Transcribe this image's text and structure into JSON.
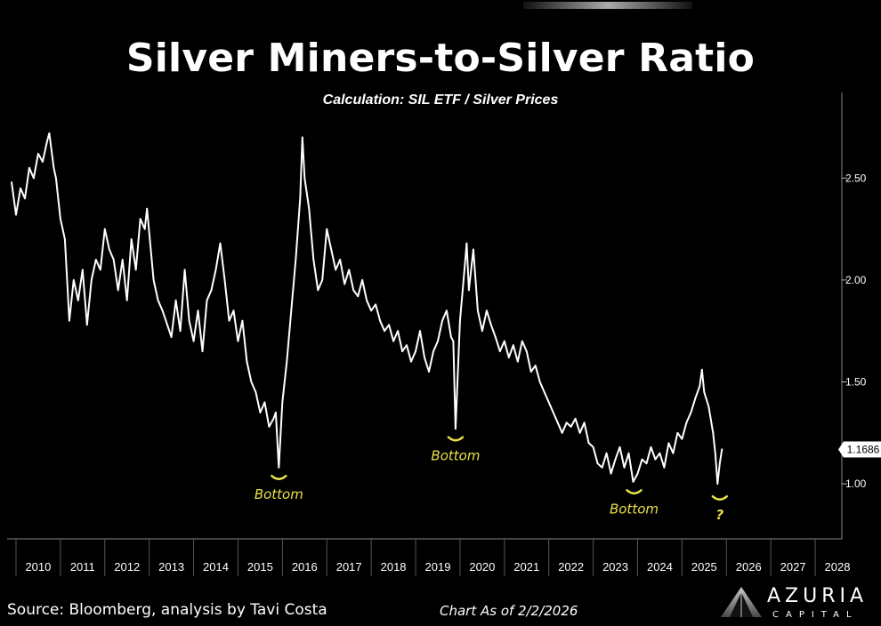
{
  "header": {
    "title": "Silver Miners-to-Silver Ratio",
    "subtitle": "Calculation: SIL ETF / Silver Prices"
  },
  "footer": {
    "source": "Source: Bloomberg, analysis by Tavi Costa",
    "as_of": "Chart As of 2/2/2026"
  },
  "logo": {
    "name": "AZURIA",
    "sub": "CAPITAL"
  },
  "colors": {
    "background": "#000000",
    "line": "#ffffff",
    "annotation": "#e8e04a"
  },
  "chart_data": {
    "type": "line",
    "title": "Silver Miners-to-Silver Ratio",
    "subtitle": "Calculation: SIL ETF / Silver Prices",
    "xlabel": "",
    "ylabel": "",
    "xlim": [
      2009.8,
      2028.6
    ],
    "ylim": [
      0.73,
      2.92
    ],
    "x_ticks": [
      "2010",
      "2011",
      "2012",
      "2013",
      "2014",
      "2015",
      "2016",
      "2017",
      "2018",
      "2019",
      "2020",
      "2021",
      "2022",
      "2023",
      "2024",
      "2025",
      "2026",
      "2027",
      "2028"
    ],
    "y_ticks": [
      "1.00",
      "1.50",
      "2.00",
      "2.50"
    ],
    "last_value": "1.1686",
    "grid": false,
    "series": [
      {
        "points": [
          [
            2009.9,
            2.48
          ],
          [
            2010.0,
            2.32
          ],
          [
            2010.1,
            2.45
          ],
          [
            2010.2,
            2.4
          ],
          [
            2010.3,
            2.55
          ],
          [
            2010.4,
            2.5
          ],
          [
            2010.5,
            2.62
          ],
          [
            2010.6,
            2.58
          ],
          [
            2010.7,
            2.68
          ],
          [
            2010.75,
            2.72
          ],
          [
            2010.85,
            2.55
          ],
          [
            2010.9,
            2.5
          ],
          [
            2011.0,
            2.3
          ],
          [
            2011.1,
            2.2
          ],
          [
            2011.2,
            1.8
          ],
          [
            2011.3,
            2.0
          ],
          [
            2011.4,
            1.9
          ],
          [
            2011.5,
            2.05
          ],
          [
            2011.6,
            1.78
          ],
          [
            2011.7,
            2.0
          ],
          [
            2011.8,
            2.1
          ],
          [
            2011.9,
            2.05
          ],
          [
            2012.0,
            2.25
          ],
          [
            2012.1,
            2.15
          ],
          [
            2012.2,
            2.1
          ],
          [
            2012.3,
            1.95
          ],
          [
            2012.4,
            2.1
          ],
          [
            2012.5,
            1.9
          ],
          [
            2012.6,
            2.2
          ],
          [
            2012.7,
            2.05
          ],
          [
            2012.8,
            2.3
          ],
          [
            2012.9,
            2.25
          ],
          [
            2012.95,
            2.35
          ],
          [
            2013.1,
            2.0
          ],
          [
            2013.2,
            1.9
          ],
          [
            2013.3,
            1.85
          ],
          [
            2013.5,
            1.72
          ],
          [
            2013.6,
            1.9
          ],
          [
            2013.7,
            1.75
          ],
          [
            2013.8,
            2.05
          ],
          [
            2013.9,
            1.8
          ],
          [
            2014.0,
            1.7
          ],
          [
            2014.1,
            1.85
          ],
          [
            2014.2,
            1.65
          ],
          [
            2014.3,
            1.9
          ],
          [
            2014.4,
            1.95
          ],
          [
            2014.5,
            2.05
          ],
          [
            2014.6,
            2.18
          ],
          [
            2014.7,
            2.0
          ],
          [
            2014.8,
            1.8
          ],
          [
            2014.9,
            1.85
          ],
          [
            2015.0,
            1.7
          ],
          [
            2015.1,
            1.8
          ],
          [
            2015.2,
            1.6
          ],
          [
            2015.3,
            1.5
          ],
          [
            2015.4,
            1.45
          ],
          [
            2015.5,
            1.35
          ],
          [
            2015.6,
            1.4
          ],
          [
            2015.7,
            1.28
          ],
          [
            2015.8,
            1.32
          ],
          [
            2015.85,
            1.35
          ],
          [
            2015.92,
            1.08
          ],
          [
            2016.0,
            1.4
          ],
          [
            2016.1,
            1.6
          ],
          [
            2016.2,
            1.85
          ],
          [
            2016.3,
            2.1
          ],
          [
            2016.4,
            2.4
          ],
          [
            2016.45,
            2.7
          ],
          [
            2016.5,
            2.5
          ],
          [
            2016.6,
            2.35
          ],
          [
            2016.7,
            2.1
          ],
          [
            2016.8,
            1.95
          ],
          [
            2016.9,
            2.0
          ],
          [
            2017.0,
            2.25
          ],
          [
            2017.1,
            2.15
          ],
          [
            2017.2,
            2.05
          ],
          [
            2017.3,
            2.1
          ],
          [
            2017.4,
            1.98
          ],
          [
            2017.5,
            2.05
          ],
          [
            2017.6,
            1.95
          ],
          [
            2017.7,
            1.92
          ],
          [
            2017.8,
            2.0
          ],
          [
            2017.9,
            1.9
          ],
          [
            2018.0,
            1.85
          ],
          [
            2018.1,
            1.88
          ],
          [
            2018.2,
            1.8
          ],
          [
            2018.3,
            1.75
          ],
          [
            2018.4,
            1.78
          ],
          [
            2018.5,
            1.7
          ],
          [
            2018.6,
            1.75
          ],
          [
            2018.7,
            1.65
          ],
          [
            2018.8,
            1.68
          ],
          [
            2018.9,
            1.6
          ],
          [
            2019.0,
            1.65
          ],
          [
            2019.1,
            1.75
          ],
          [
            2019.2,
            1.62
          ],
          [
            2019.3,
            1.55
          ],
          [
            2019.4,
            1.65
          ],
          [
            2019.5,
            1.7
          ],
          [
            2019.6,
            1.8
          ],
          [
            2019.7,
            1.85
          ],
          [
            2019.8,
            1.72
          ],
          [
            2019.85,
            1.7
          ],
          [
            2019.9,
            1.27
          ],
          [
            2020.0,
            1.8
          ],
          [
            2020.1,
            2.05
          ],
          [
            2020.15,
            2.18
          ],
          [
            2020.2,
            1.95
          ],
          [
            2020.3,
            2.15
          ],
          [
            2020.4,
            1.85
          ],
          [
            2020.5,
            1.75
          ],
          [
            2020.6,
            1.85
          ],
          [
            2020.7,
            1.78
          ],
          [
            2020.8,
            1.72
          ],
          [
            2020.9,
            1.65
          ],
          [
            2021.0,
            1.7
          ],
          [
            2021.1,
            1.62
          ],
          [
            2021.2,
            1.68
          ],
          [
            2021.3,
            1.6
          ],
          [
            2021.4,
            1.7
          ],
          [
            2021.5,
            1.65
          ],
          [
            2021.6,
            1.55
          ],
          [
            2021.7,
            1.58
          ],
          [
            2021.8,
            1.5
          ],
          [
            2021.9,
            1.45
          ],
          [
            2022.0,
            1.4
          ],
          [
            2022.1,
            1.35
          ],
          [
            2022.2,
            1.3
          ],
          [
            2022.3,
            1.25
          ],
          [
            2022.4,
            1.3
          ],
          [
            2022.5,
            1.28
          ],
          [
            2022.6,
            1.32
          ],
          [
            2022.7,
            1.25
          ],
          [
            2022.8,
            1.3
          ],
          [
            2022.9,
            1.2
          ],
          [
            2023.0,
            1.18
          ],
          [
            2023.1,
            1.1
          ],
          [
            2023.2,
            1.08
          ],
          [
            2023.3,
            1.15
          ],
          [
            2023.4,
            1.05
          ],
          [
            2023.5,
            1.12
          ],
          [
            2023.6,
            1.18
          ],
          [
            2023.7,
            1.08
          ],
          [
            2023.8,
            1.15
          ],
          [
            2023.9,
            1.01
          ],
          [
            2024.0,
            1.05
          ],
          [
            2024.1,
            1.12
          ],
          [
            2024.2,
            1.1
          ],
          [
            2024.3,
            1.18
          ],
          [
            2024.4,
            1.12
          ],
          [
            2024.5,
            1.15
          ],
          [
            2024.6,
            1.08
          ],
          [
            2024.7,
            1.2
          ],
          [
            2024.8,
            1.15
          ],
          [
            2024.9,
            1.25
          ],
          [
            2025.0,
            1.22
          ],
          [
            2025.1,
            1.3
          ],
          [
            2025.2,
            1.35
          ],
          [
            2025.3,
            1.42
          ],
          [
            2025.4,
            1.48
          ],
          [
            2025.45,
            1.56
          ],
          [
            2025.5,
            1.45
          ],
          [
            2025.6,
            1.38
          ],
          [
            2025.7,
            1.25
          ],
          [
            2025.75,
            1.15
          ],
          [
            2025.8,
            1.0
          ],
          [
            2025.85,
            1.1
          ],
          [
            2025.9,
            1.17
          ]
        ]
      }
    ],
    "annotations": [
      {
        "text": "Bottom",
        "x": 2015.92,
        "y": 1.03
      },
      {
        "text": "Bottom",
        "x": 2019.9,
        "y": 1.22
      },
      {
        "text": "Bottom",
        "x": 2023.92,
        "y": 0.96
      },
      {
        "text": "?",
        "x": 2025.85,
        "y": 0.93
      }
    ]
  }
}
